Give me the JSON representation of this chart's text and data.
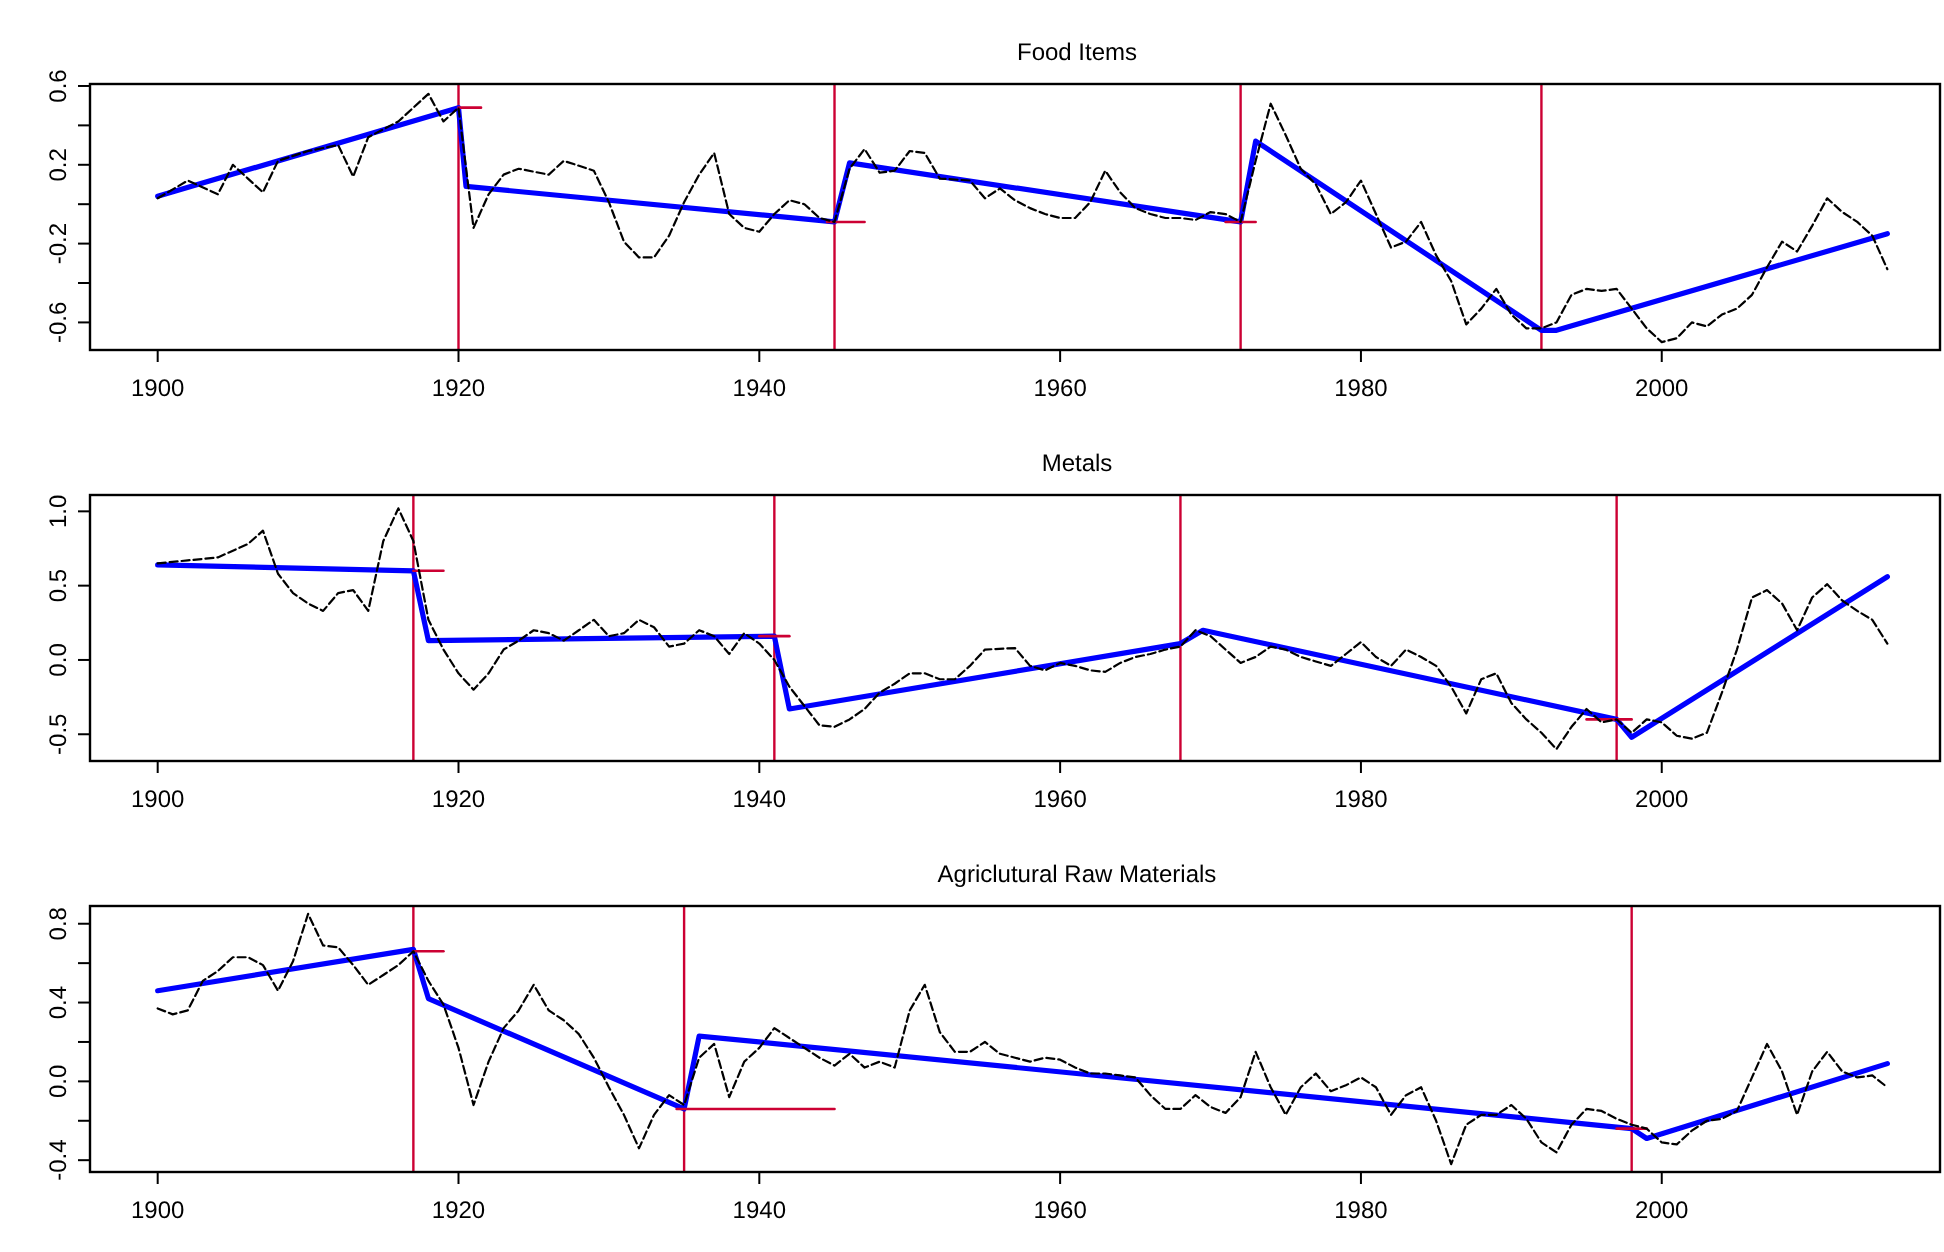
{
  "chart_data": [
    {
      "type": "line",
      "title": "Food Items",
      "xlim": [
        1895.5,
        2018.5
      ],
      "xticks": [
        1900,
        1920,
        1940,
        1960,
        1980,
        2000
      ],
      "ylim": [
        -0.74,
        0.61
      ],
      "yticks": [
        -0.6,
        {
          "value": -0.4,
          "label": null
        },
        -0.2,
        {
          "value": 0,
          "label": null
        },
        0.2,
        {
          "value": 0.4,
          "label": null
        },
        0.6
      ],
      "series": [
        {
          "color": "#000000",
          "line_style": "dashed",
          "x": [
            1900,
            1902,
            1904,
            1905,
            1906,
            1907,
            1908,
            1910,
            1912,
            1913,
            1914,
            1916,
            1918,
            1919,
            1920,
            1921,
            1922,
            1923,
            1924,
            1926,
            1927,
            1929,
            1930,
            1931,
            1932,
            1933,
            1934,
            1935,
            1936,
            1937,
            1938,
            1939,
            1940,
            1941,
            1942,
            1943,
            1944,
            1945,
            1946,
            1947,
            1948,
            1949,
            1950,
            1951,
            1952,
            1954,
            1955,
            1956,
            1957,
            1958,
            1959,
            1960,
            1961,
            1962,
            1963,
            1964,
            1965,
            1966,
            1967,
            1968,
            1969,
            1970,
            1971,
            1972,
            1973,
            1974,
            1975,
            1976,
            1977,
            1978,
            1979,
            1980,
            1981,
            1982,
            1983,
            1984,
            1985,
            1986,
            1987,
            1988,
            1989,
            1990,
            1991,
            1992,
            1993,
            1994,
            1995,
            1996,
            1997,
            1998,
            1999,
            2000,
            2001,
            2002,
            2003,
            2004,
            2005,
            2006,
            2007,
            2008,
            2009,
            2010,
            2011,
            2012,
            2013,
            2014,
            2015
          ],
          "values": [
            0.03,
            0.12,
            0.05,
            0.2,
            0.13,
            0.06,
            0.22,
            0.27,
            0.3,
            0.14,
            0.34,
            0.42,
            0.56,
            0.42,
            0.49,
            -0.12,
            0.05,
            0.15,
            0.18,
            0.15,
            0.22,
            0.17,
            0.01,
            -0.19,
            -0.27,
            -0.27,
            -0.16,
            0.01,
            0.15,
            0.26,
            -0.05,
            -0.12,
            -0.14,
            -0.05,
            0.02,
            0,
            -0.07,
            -0.09,
            0.18,
            0.28,
            0.16,
            0.17,
            0.27,
            0.26,
            0.13,
            0.12,
            0.03,
            0.08,
            0.02,
            -0.02,
            -0.05,
            -0.07,
            -0.07,
            0.01,
            0.17,
            0.06,
            -0.02,
            -0.05,
            -0.07,
            -0.07,
            -0.08,
            -0.04,
            -0.05,
            -0.09,
            0.22,
            0.51,
            0.35,
            0.18,
            0.1,
            -0.05,
            0.01,
            0.12,
            -0.05,
            -0.22,
            -0.19,
            -0.09,
            -0.26,
            -0.39,
            -0.61,
            -0.53,
            -0.43,
            -0.56,
            -0.63,
            -0.63,
            -0.6,
            -0.46,
            -0.43,
            -0.44,
            -0.43,
            -0.53,
            -0.63,
            -0.7,
            -0.68,
            -0.6,
            -0.62,
            -0.56,
            -0.53,
            -0.46,
            -0.32,
            -0.19,
            -0.24,
            -0.11,
            0.03,
            -0.04,
            -0.09,
            -0.16,
            -0.33
          ]
        },
        {
          "color": "#0000ff",
          "line_style": "solid",
          "x": [
            1900,
            1920,
            1920.5,
            1945,
            1946,
            1972,
            1973,
            1992,
            1993,
            2015
          ],
          "values": [
            0.04,
            0.49,
            0.09,
            -0.09,
            0.21,
            -0.09,
            0.32,
            -0.64,
            -0.64,
            -0.15
          ]
        },
        {
          "color": "#cc0033",
          "line_style": "solid",
          "x": [
            1920,
            1921.5
          ],
          "values": [
            0.49,
            0.49
          ]
        },
        {
          "color": "#cc0033",
          "line_style": "solid",
          "x": [
            1944.5,
            1947
          ],
          "values": [
            -0.09,
            -0.09
          ]
        },
        {
          "color": "#cc0033",
          "line_style": "solid",
          "x": [
            1971,
            1973
          ],
          "values": [
            -0.09,
            -0.09
          ]
        }
      ],
      "ref_lines": [
        {
          "axis": "x",
          "value": 1920,
          "color": "#cc0033"
        },
        {
          "axis": "x",
          "value": 1945,
          "color": "#cc0033"
        },
        {
          "axis": "x",
          "value": 1972,
          "color": "#cc0033"
        },
        {
          "axis": "x",
          "value": 1992,
          "color": "#cc0033"
        }
      ]
    },
    {
      "type": "line",
      "title": "Metals",
      "xlim": [
        1895.5,
        2018.5
      ],
      "xticks": [
        1900,
        1920,
        1940,
        1960,
        1980,
        2000
      ],
      "ylim": [
        -0.68,
        1.11
      ],
      "yticks": [
        -0.5,
        {
          "value": 0,
          "label": "0.0"
        },
        0.5,
        {
          "value": 1,
          "label": "1.0"
        }
      ],
      "series": [
        {
          "color": "#000000",
          "line_style": "dashed",
          "x": [
            1900,
            1902,
            1904,
            1906,
            1907,
            1908,
            1909,
            1910,
            1911,
            1912,
            1913,
            1914,
            1915,
            1916,
            1917,
            1918,
            1919,
            1920,
            1921,
            1922,
            1923,
            1924,
            1925,
            1926,
            1927,
            1928,
            1929,
            1930,
            1931,
            1932,
            1933,
            1934,
            1935,
            1936,
            1937,
            1938,
            1939,
            1940,
            1941,
            1942,
            1943,
            1944,
            1945,
            1946,
            1947,
            1948,
            1949,
            1950,
            1951,
            1952,
            1953,
            1954,
            1955,
            1957,
            1958,
            1959,
            1960,
            1961,
            1962,
            1963,
            1964,
            1965,
            1966,
            1967,
            1968,
            1969,
            1970,
            1971,
            1972,
            1973,
            1974,
            1975,
            1976,
            1977,
            1978,
            1979,
            1980,
            1981,
            1982,
            1983,
            1984,
            1985,
            1986,
            1987,
            1988,
            1989,
            1990,
            1991,
            1992,
            1993,
            1994,
            1995,
            1996,
            1997,
            1998,
            1999,
            2000,
            2001,
            2002,
            2003,
            2004,
            2005,
            2006,
            2007,
            2008,
            2009,
            2010,
            2011,
            2012,
            2013,
            2014,
            2015
          ],
          "values": [
            0.65,
            0.67,
            0.69,
            0.78,
            0.87,
            0.58,
            0.45,
            0.38,
            0.33,
            0.45,
            0.47,
            0.33,
            0.8,
            1.02,
            0.8,
            0.27,
            0.07,
            -0.09,
            -0.2,
            -0.09,
            0.07,
            0.13,
            0.2,
            0.18,
            0.13,
            0.2,
            0.27,
            0.16,
            0.18,
            0.27,
            0.22,
            0.09,
            0.11,
            0.2,
            0.16,
            0.04,
            0.18,
            0.11,
            0,
            -0.18,
            -0.31,
            -0.44,
            -0.45,
            -0.4,
            -0.33,
            -0.22,
            -0.16,
            -0.09,
            -0.09,
            -0.13,
            -0.13,
            -0.04,
            0.07,
            0.08,
            -0.04,
            -0.07,
            -0.02,
            -0.04,
            -0.07,
            -0.08,
            -0.02,
            0.02,
            0.04,
            0.07,
            0.09,
            0.2,
            0.16,
            0.07,
            -0.02,
            0.02,
            0.09,
            0.07,
            0.02,
            -0.01,
            -0.04,
            0.04,
            0.12,
            0.02,
            -0.04,
            0.07,
            0.02,
            -0.04,
            -0.18,
            -0.36,
            -0.13,
            -0.09,
            -0.29,
            -0.4,
            -0.49,
            -0.6,
            -0.45,
            -0.33,
            -0.42,
            -0.4,
            -0.49,
            -0.4,
            -0.42,
            -0.51,
            -0.53,
            -0.49,
            -0.22,
            0.07,
            0.42,
            0.47,
            0.38,
            0.2,
            0.42,
            0.51,
            0.4,
            0.33,
            0.27,
            0.11
          ]
        },
        {
          "color": "#0000ff",
          "line_style": "solid",
          "x": [
            1900,
            1917,
            1918,
            1941,
            1942,
            1968,
            1969.5,
            1997,
            1998,
            2015
          ],
          "values": [
            0.64,
            0.6,
            0.13,
            0.16,
            -0.33,
            0.11,
            0.2,
            -0.4,
            -0.52,
            0.56
          ]
        },
        {
          "color": "#cc0033",
          "line_style": "solid",
          "x": [
            1917,
            1919
          ],
          "values": [
            0.6,
            0.6
          ]
        },
        {
          "color": "#cc0033",
          "line_style": "solid",
          "x": [
            1940,
            1942
          ],
          "values": [
            0.16,
            0.16
          ]
        },
        {
          "color": "#cc0033",
          "line_style": "solid",
          "x": [
            1995,
            1998
          ],
          "values": [
            -0.4,
            -0.4
          ]
        }
      ],
      "ref_lines": [
        {
          "axis": "x",
          "value": 1917,
          "color": "#cc0033"
        },
        {
          "axis": "x",
          "value": 1941,
          "color": "#cc0033"
        },
        {
          "axis": "x",
          "value": 1968,
          "color": "#cc0033"
        },
        {
          "axis": "x",
          "value": 1997,
          "color": "#cc0033"
        }
      ]
    },
    {
      "type": "line",
      "title": "Agriclutural Raw Materials",
      "xlim": [
        1895.5,
        2018.5
      ],
      "xticks": [
        1900,
        1920,
        1940,
        1960,
        1980,
        2000
      ],
      "ylim": [
        -0.46,
        0.89
      ],
      "yticks": [
        -0.4,
        {
          "value": -0.2,
          "label": null
        },
        {
          "value": 0,
          "label": "0.0"
        },
        {
          "value": 0.2,
          "label": null
        },
        0.4,
        {
          "value": 0.6,
          "label": null
        },
        0.8
      ],
      "series": [
        {
          "color": "#000000",
          "line_style": "dashed",
          "x": [
            1900,
            1901,
            1902,
            1903,
            1904,
            1905,
            1906,
            1907,
            1908,
            1909,
            1910,
            1911,
            1912,
            1913,
            1914,
            1915,
            1916,
            1917,
            1918,
            1919,
            1920,
            1921,
            1922,
            1923,
            1924,
            1925,
            1926,
            1927,
            1928,
            1929,
            1930,
            1931,
            1932,
            1933,
            1934,
            1935,
            1936,
            1937,
            1938,
            1939,
            1940,
            1941,
            1942,
            1943,
            1944,
            1945,
            1946,
            1947,
            1948,
            1949,
            1950,
            1951,
            1952,
            1953,
            1954,
            1955,
            1956,
            1957,
            1958,
            1959,
            1960,
            1961,
            1962,
            1963,
            1964,
            1965,
            1966,
            1967,
            1968,
            1969,
            1970,
            1971,
            1972,
            1973,
            1974,
            1975,
            1976,
            1977,
            1978,
            1979,
            1980,
            1981,
            1982,
            1983,
            1984,
            1985,
            1986,
            1987,
            1988,
            1989,
            1990,
            1991,
            1992,
            1993,
            1994,
            1995,
            1996,
            1997,
            1998,
            1999,
            2000,
            2001,
            2002,
            2003,
            2004,
            2005,
            2006,
            2007,
            2008,
            2009,
            2010,
            2011,
            2012,
            2013,
            2014,
            2015
          ],
          "values": [
            0.37,
            0.34,
            0.36,
            0.51,
            0.56,
            0.63,
            0.63,
            0.59,
            0.46,
            0.61,
            0.85,
            0.69,
            0.68,
            0.59,
            0.49,
            0.54,
            0.59,
            0.66,
            0.51,
            0.39,
            0.17,
            -0.12,
            0.1,
            0.27,
            0.36,
            0.49,
            0.36,
            0.31,
            0.24,
            0.12,
            -0.03,
            -0.17,
            -0.34,
            -0.17,
            -0.07,
            -0.12,
            0.12,
            0.19,
            -0.08,
            0.1,
            0.17,
            0.27,
            0.22,
            0.17,
            0.12,
            0.08,
            0.14,
            0.07,
            0.1,
            0.07,
            0.36,
            0.49,
            0.25,
            0.15,
            0.15,
            0.2,
            0.14,
            0.12,
            0.1,
            0.12,
            0.11,
            0.07,
            0.04,
            0.04,
            0.03,
            0.02,
            -0.07,
            -0.14,
            -0.14,
            -0.07,
            -0.13,
            -0.16,
            -0.08,
            0.15,
            -0.03,
            -0.17,
            -0.03,
            0.04,
            -0.05,
            -0.02,
            0.02,
            -0.03,
            -0.17,
            -0.07,
            -0.03,
            -0.2,
            -0.42,
            -0.22,
            -0.17,
            -0.17,
            -0.12,
            -0.19,
            -0.31,
            -0.36,
            -0.22,
            -0.14,
            -0.15,
            -0.19,
            -0.22,
            -0.24,
            -0.31,
            -0.32,
            -0.25,
            -0.2,
            -0.19,
            -0.15,
            0.02,
            0.19,
            0.05,
            -0.17,
            0.05,
            0.15,
            0.05,
            0.02,
            0.03,
            -0.03
          ]
        },
        {
          "color": "#0000ff",
          "line_style": "solid",
          "x": [
            1900,
            1917,
            1918,
            1935,
            1936,
            1998,
            1999,
            2015
          ],
          "values": [
            0.46,
            0.67,
            0.42,
            -0.14,
            0.23,
            -0.24,
            -0.29,
            0.09
          ]
        },
        {
          "color": "#cc0033",
          "line_style": "solid",
          "x": [
            1917,
            1919
          ],
          "values": [
            0.66,
            0.66
          ]
        },
        {
          "color": "#cc0033",
          "line_style": "solid",
          "x": [
            1934.5,
            1945
          ],
          "values": [
            -0.14,
            -0.14
          ]
        },
        {
          "color": "#cc0033",
          "line_style": "solid",
          "x": [
            1997,
            1999
          ],
          "values": [
            -0.24,
            -0.24
          ]
        }
      ],
      "ref_lines": [
        {
          "axis": "x",
          "value": 1917,
          "color": "#cc0033"
        },
        {
          "axis": "x",
          "value": 1935,
          "color": "#cc0033"
        },
        {
          "axis": "x",
          "value": 1998,
          "color": "#cc0033"
        }
      ]
    }
  ]
}
